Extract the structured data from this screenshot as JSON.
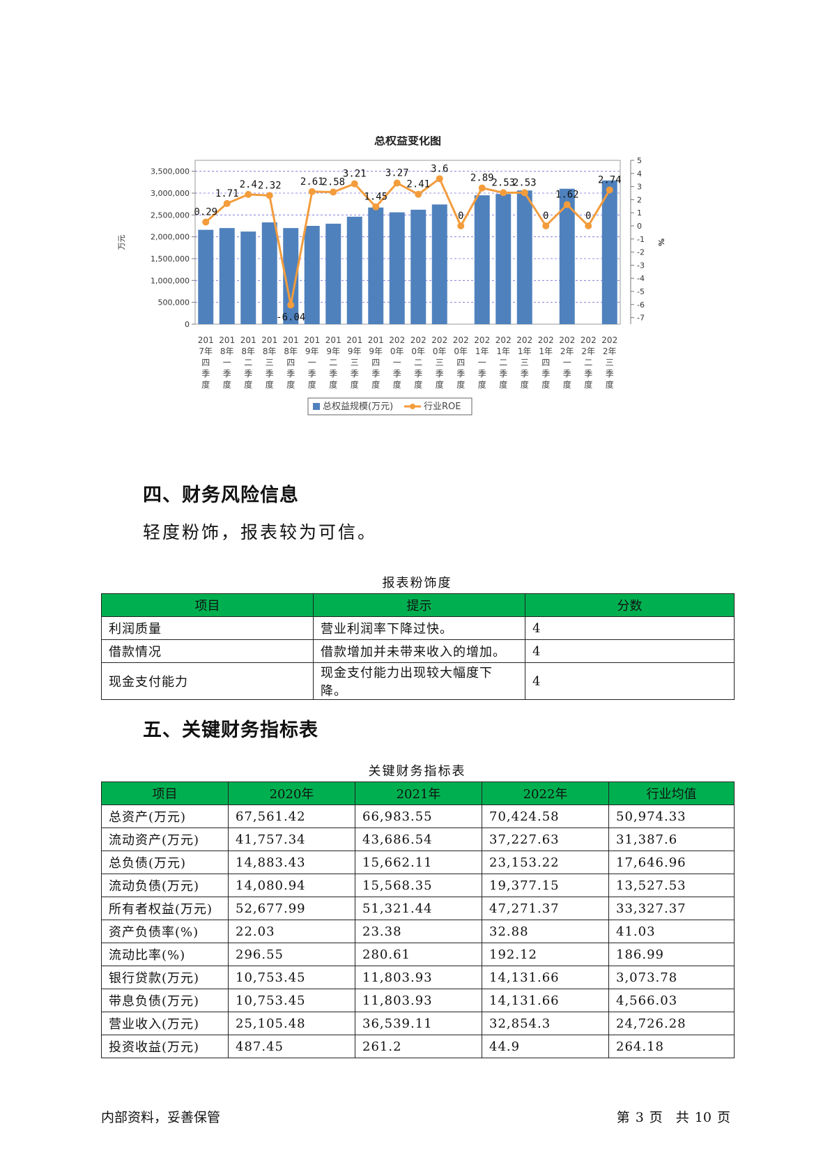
{
  "chart_data": {
    "type": "bar",
    "title": "总权益变化图",
    "ylabel": "万元",
    "y2label": "%",
    "ylim": [
      0,
      3750000
    ],
    "y2lim": [
      -7.5,
      5
    ],
    "yticks": [
      "0",
      "500,000",
      "1,000,000",
      "1,500,000",
      "2,000,000",
      "2,500,000",
      "3,000,000",
      "3,500,000"
    ],
    "y2ticks": [
      "5",
      "4",
      "3",
      "2",
      "1",
      "0",
      "-1",
      "-2",
      "-3",
      "-4",
      "-5",
      "-6",
      "-7"
    ],
    "grid": true,
    "legend_position": "bottom",
    "categories": [
      [
        "201",
        "7年",
        "四",
        "季",
        "度"
      ],
      [
        "201",
        "8年",
        "一",
        "季",
        "度"
      ],
      [
        "201",
        "8年",
        "二",
        "季",
        "度"
      ],
      [
        "201",
        "8年",
        "三",
        "季",
        "度"
      ],
      [
        "201",
        "8年",
        "四",
        "季",
        "度"
      ],
      [
        "201",
        "9年",
        "一",
        "季",
        "度"
      ],
      [
        "201",
        "9年",
        "二",
        "季",
        "度"
      ],
      [
        "201",
        "9年",
        "三",
        "季",
        "度"
      ],
      [
        "201",
        "9年",
        "四",
        "季",
        "度"
      ],
      [
        "202",
        "0年",
        "一",
        "季",
        "度"
      ],
      [
        "202",
        "0年",
        "二",
        "季",
        "度"
      ],
      [
        "202",
        "0年",
        "三",
        "季",
        "度"
      ],
      [
        "202",
        "0年",
        "四",
        "季",
        "度"
      ],
      [
        "202",
        "1年",
        "一",
        "季",
        "度"
      ],
      [
        "202",
        "1年",
        "二",
        "季",
        "度"
      ],
      [
        "202",
        "1年",
        "三",
        "季",
        "度"
      ],
      [
        "202",
        "1年",
        "四",
        "季",
        "度"
      ],
      [
        "202",
        "2年",
        "一",
        "季",
        "度"
      ],
      [
        "202",
        "2年",
        "二",
        "季",
        "度"
      ],
      [
        "202",
        "2年",
        "三",
        "季",
        "度"
      ]
    ],
    "series": [
      {
        "name": "总权益规模(万元)",
        "type": "bar",
        "color": "#4f81bd",
        "values": [
          2160000,
          2200000,
          2120000,
          2330000,
          2200000,
          2250000,
          2300000,
          2460000,
          2670000,
          2560000,
          2620000,
          2740000,
          null,
          2950000,
          2980000,
          3060000,
          null,
          3100000,
          null,
          3290000
        ]
      },
      {
        "name": "行业ROE",
        "type": "line",
        "color": "#f39c3c",
        "values": [
          0.29,
          1.71,
          2.4,
          2.32,
          -6.04,
          2.61,
          2.58,
          3.21,
          1.45,
          3.27,
          2.41,
          3.6,
          0,
          2.89,
          2.53,
          2.53,
          0,
          1.62,
          0,
          2.74
        ],
        "labels": [
          "0.29",
          "1.71",
          "2.4",
          "2.32",
          "-6.04",
          "2.61",
          "2.58",
          "3.21",
          "1.45",
          "3.27",
          "2.41",
          "3.6",
          "0",
          "2.89",
          "2.53",
          "2.53",
          "0",
          "1.62",
          "0",
          "2.74"
        ]
      }
    ]
  },
  "section4": {
    "heading": "四、财务风险信息",
    "paragraph": "轻度粉饰，报表较为可信。",
    "table_caption": "报表粉饰度",
    "headers": [
      "项目",
      "提示",
      "分数"
    ],
    "rows": [
      [
        "利润质量",
        "营业利润率下降过快。",
        "4"
      ],
      [
        "借款情况",
        "借款增加并未带来收入的增加。",
        "4"
      ],
      [
        "现金支付能力",
        "现金支付能力出现较大幅度下降。",
        "4"
      ]
    ]
  },
  "section5": {
    "heading": "五、关键财务指标表",
    "table_caption": "关键财务指标表",
    "headers": [
      "项目",
      "2020年",
      "2021年",
      "2022年",
      "行业均值"
    ],
    "rows": [
      [
        "总资产(万元)",
        "67,561.42",
        "66,983.55",
        "70,424.58",
        "50,974.33"
      ],
      [
        "流动资产(万元)",
        "41,757.34",
        "43,686.54",
        "37,227.63",
        "31,387.6"
      ],
      [
        "总负债(万元)",
        "14,883.43",
        "15,662.11",
        "23,153.22",
        "17,646.96"
      ],
      [
        "流动负债(万元)",
        "14,080.94",
        "15,568.35",
        "19,377.15",
        "13,527.53"
      ],
      [
        "所有者权益(万元)",
        "52,677.99",
        "51,321.44",
        "47,271.37",
        "33,327.37"
      ],
      [
        "资产负债率(%)",
        "22.03",
        "23.38",
        "32.88",
        "41.03"
      ],
      [
        "流动比率(%)",
        "296.55",
        "280.61",
        "192.12",
        "186.99"
      ],
      [
        "银行贷款(万元)",
        "10,753.45",
        "11,803.93",
        "14,131.66",
        "3,073.78"
      ],
      [
        "带息负债(万元)",
        "10,753.45",
        "11,803.93",
        "14,131.66",
        "4,566.03"
      ],
      [
        "营业收入(万元)",
        "25,105.48",
        "36,539.11",
        "32,854.3",
        "24,726.28"
      ],
      [
        "投资收益(万元)",
        "487.45",
        "261.2",
        "44.9",
        "264.18"
      ]
    ]
  },
  "footer": {
    "left": "内部资料，妥善保管",
    "page_prefix": "第",
    "page_current": "3",
    "page_mid": "页　共",
    "page_total": "10",
    "page_suffix": "页"
  }
}
